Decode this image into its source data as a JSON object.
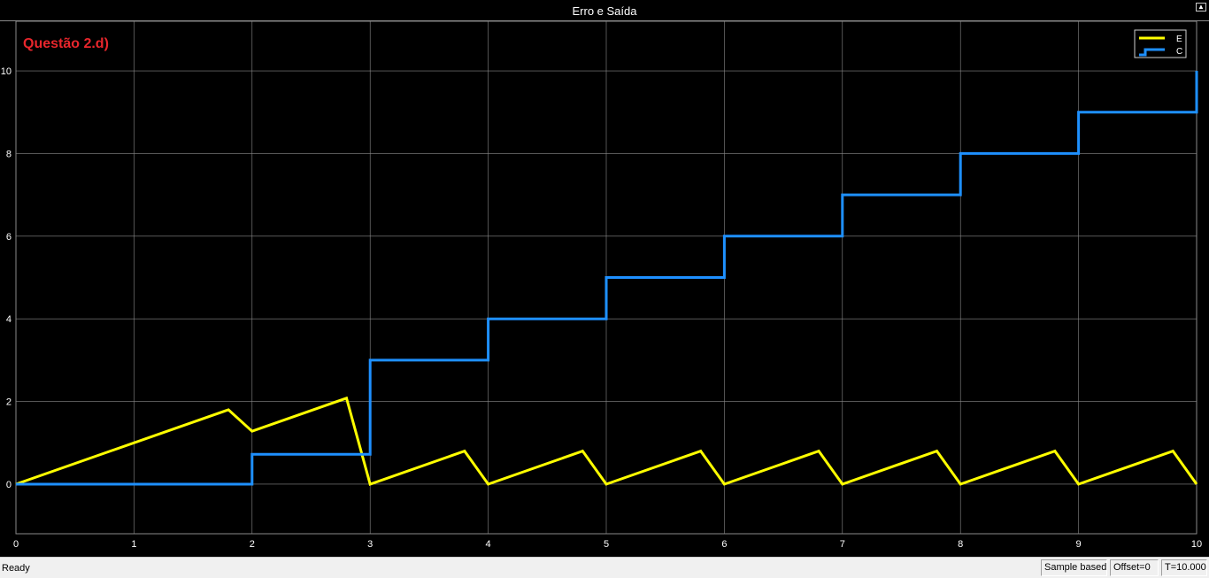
{
  "window": {
    "title": "Erro e Saída",
    "undock_icon": "undock-icon"
  },
  "annotation": {
    "text": "Questão 2.d)",
    "color": "#e8262c"
  },
  "status_bar": {
    "ready": "Ready",
    "mode": "Sample based",
    "offset": "Offset=0",
    "time": "T=10.000"
  },
  "colors": {
    "background": "#000000",
    "grid": "#8a8a8a",
    "axis_text": "#ffffff",
    "E": "#ffff00",
    "C": "#1e90ff"
  },
  "chart_data": {
    "type": "line",
    "title": "Erro e Saída",
    "xlabel": "",
    "ylabel": "",
    "xlim": [
      0,
      10
    ],
    "ylim": [
      -1.2,
      11.2
    ],
    "xticks": [
      0,
      1,
      2,
      3,
      4,
      5,
      6,
      7,
      8,
      9,
      10
    ],
    "yticks": [
      0,
      2,
      4,
      6,
      8,
      10
    ],
    "grid": true,
    "legend_position": "top-right",
    "series": [
      {
        "name": "E",
        "style": "line",
        "x": [
          0,
          1.8,
          2,
          2.8,
          3,
          3.8,
          4,
          4.8,
          5,
          5.8,
          6,
          6.8,
          7,
          7.8,
          8,
          8.8,
          9,
          9.8,
          10
        ],
        "y": [
          0,
          1.8,
          1.28,
          2.08,
          0,
          0.8,
          0,
          0.8,
          0,
          0.8,
          0,
          0.8,
          0,
          0.8,
          0,
          0.8,
          0,
          0.8,
          0
        ]
      },
      {
        "name": "C",
        "style": "stairs",
        "x": [
          0,
          2,
          3,
          4,
          5,
          6,
          7,
          8,
          9,
          10
        ],
        "y": [
          0,
          0.72,
          3,
          4,
          5,
          6,
          7,
          8,
          9,
          10
        ]
      }
    ]
  }
}
